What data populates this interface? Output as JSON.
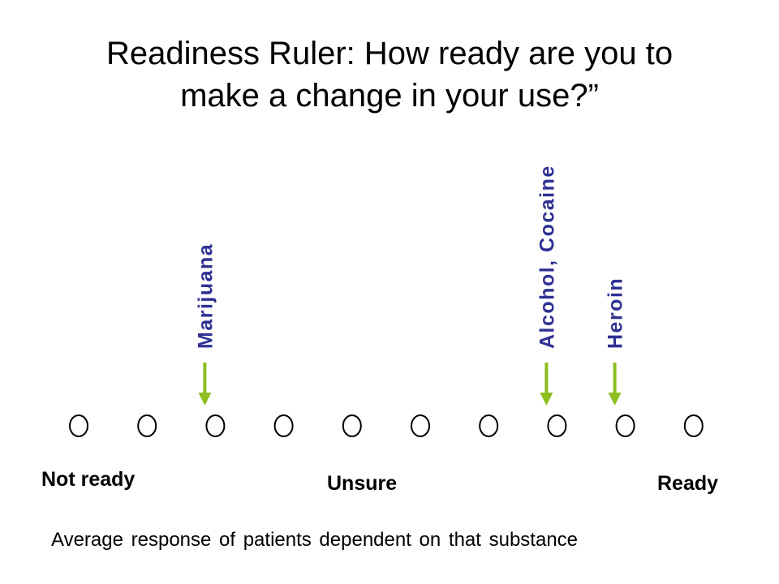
{
  "title": {
    "line1": "Readiness Ruler:  How ready are you to",
    "line2": "make a change in your use?”"
  },
  "scale": {
    "points": 10,
    "anchors": {
      "low": "Not ready",
      "mid": "Unsure",
      "high": "Ready"
    }
  },
  "markers": [
    {
      "label": "Marijuana",
      "position": 3
    },
    {
      "label": "Alcohol, Cocaine",
      "position": 8
    },
    {
      "label": "Heroin",
      "position": 9
    }
  ],
  "caption": "Average response of patients dependent on that substance",
  "colors": {
    "label": "#2E3192",
    "arrow": "#8CBF1F",
    "circle": "#000000"
  }
}
